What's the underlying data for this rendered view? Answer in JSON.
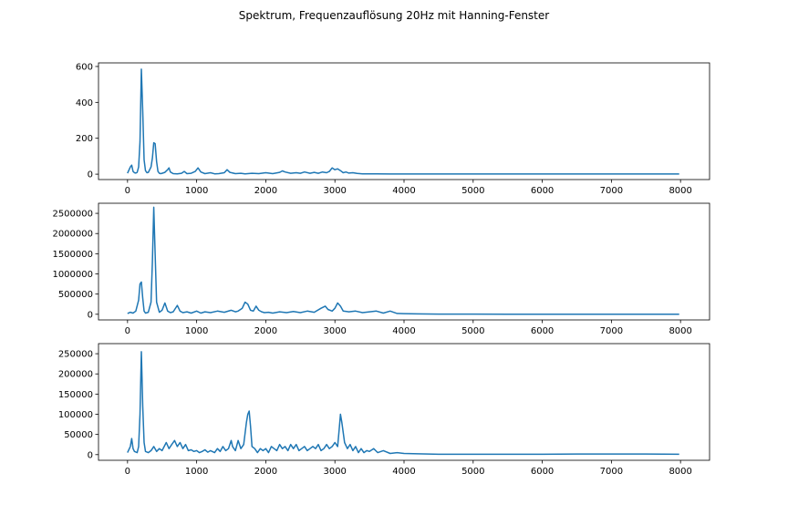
{
  "figure": {
    "title": "Spektrum, Frequenzauflösung 20Hz mit Hanning-Fenster"
  },
  "chart_data": [
    {
      "type": "line",
      "title": "",
      "xlabel": "",
      "ylabel": "",
      "xlim": [
        -420,
        8420
      ],
      "ylim": [
        -30,
        620
      ],
      "xticks": [
        0,
        1000,
        2000,
        3000,
        4000,
        5000,
        6000,
        7000,
        8000
      ],
      "yticks": [
        0,
        200,
        400,
        600
      ],
      "ytick_labels": [
        "0",
        "200",
        "400",
        "600"
      ],
      "grid": false,
      "color": "#1f77b4",
      "series": [
        {
          "x": [
            0,
            40,
            60,
            80,
            100,
            120,
            140,
            160,
            180,
            200,
            220,
            240,
            260,
            280,
            300,
            320,
            340,
            360,
            380,
            400,
            420,
            440,
            460,
            480,
            500,
            540,
            580,
            600,
            620,
            660,
            720,
            780,
            820,
            860,
            920,
            980,
            1020,
            1060,
            1120,
            1200,
            1260,
            1320,
            1400,
            1440,
            1480,
            1560,
            1640,
            1700,
            1800,
            1900,
            2000,
            2100,
            2200,
            2240,
            2280,
            2360,
            2440,
            2500,
            2560,
            2640,
            2700,
            2760,
            2820,
            2880,
            2920,
            2960,
            3000,
            3040,
            3080,
            3120,
            3160,
            3200,
            3260,
            3320,
            3400,
            3500,
            3600,
            3800,
            4000,
            4500,
            5000,
            5500,
            6000,
            6500,
            7000,
            7500,
            7980
          ],
          "y": [
            5,
            40,
            50,
            15,
            8,
            6,
            10,
            40,
            180,
            585,
            350,
            80,
            20,
            8,
            10,
            25,
            40,
            90,
            175,
            170,
            70,
            15,
            5,
            3,
            5,
            10,
            25,
            35,
            12,
            3,
            2,
            5,
            15,
            3,
            5,
            15,
            35,
            12,
            3,
            8,
            2,
            3,
            8,
            25,
            10,
            3,
            5,
            2,
            5,
            3,
            8,
            3,
            10,
            18,
            12,
            5,
            8,
            5,
            12,
            5,
            10,
            5,
            12,
            8,
            15,
            35,
            25,
            30,
            20,
            8,
            12,
            6,
            8,
            4,
            2,
            2,
            2,
            1,
            1,
            1,
            1,
            1,
            1,
            1,
            1,
            1,
            1
          ]
        }
      ]
    },
    {
      "type": "line",
      "title": "",
      "xlabel": "",
      "ylabel": "",
      "xlim": [
        -420,
        8420
      ],
      "ylim": [
        -140000,
        2750000
      ],
      "xticks": [
        0,
        1000,
        2000,
        3000,
        4000,
        5000,
        6000,
        7000,
        8000
      ],
      "yticks": [
        0,
        500000,
        1000000,
        1500000,
        2000000,
        2500000
      ],
      "ytick_labels": [
        "0",
        "500000",
        "1000000",
        "1500000",
        "2000000",
        "2500000"
      ],
      "grid": false,
      "color": "#1f77b4",
      "series": [
        {
          "x": [
            0,
            40,
            80,
            120,
            160,
            180,
            200,
            220,
            240,
            260,
            300,
            340,
            360,
            380,
            400,
            420,
            460,
            500,
            540,
            580,
            620,
            660,
            720,
            760,
            800,
            860,
            920,
            1000,
            1060,
            1120,
            1200,
            1300,
            1400,
            1500,
            1560,
            1600,
            1660,
            1700,
            1740,
            1780,
            1820,
            1860,
            1900,
            1940,
            1980,
            2040,
            2100,
            2200,
            2300,
            2400,
            2500,
            2600,
            2700,
            2800,
            2860,
            2900,
            2960,
            3000,
            3040,
            3080,
            3120,
            3200,
            3300,
            3400,
            3500,
            3600,
            3700,
            3800,
            3900,
            4000,
            4200,
            4500,
            5000,
            5500,
            6000,
            6500,
            7000,
            7500,
            7980
          ],
          "y": [
            20000,
            50000,
            30000,
            80000,
            350000,
            750000,
            800000,
            400000,
            80000,
            30000,
            50000,
            300000,
            1300000,
            2650000,
            1500000,
            300000,
            50000,
            100000,
            280000,
            80000,
            40000,
            60000,
            220000,
            80000,
            40000,
            60000,
            30000,
            80000,
            30000,
            60000,
            40000,
            80000,
            50000,
            100000,
            60000,
            80000,
            150000,
            300000,
            250000,
            100000,
            80000,
            200000,
            100000,
            60000,
            40000,
            50000,
            30000,
            60000,
            40000,
            70000,
            40000,
            80000,
            50000,
            150000,
            200000,
            120000,
            80000,
            150000,
            280000,
            200000,
            80000,
            60000,
            80000,
            40000,
            60000,
            80000,
            30000,
            80000,
            20000,
            15000,
            10000,
            5000,
            5000,
            3000,
            2000,
            2000,
            2000,
            2000,
            2000
          ]
        }
      ]
    },
    {
      "type": "line",
      "title": "",
      "xlabel": "",
      "ylabel": "",
      "xlim": [
        -420,
        8420
      ],
      "ylim": [
        -14000,
        275000
      ],
      "xticks": [
        0,
        1000,
        2000,
        3000,
        4000,
        5000,
        6000,
        7000,
        8000
      ],
      "yticks": [
        0,
        50000,
        100000,
        150000,
        200000,
        250000
      ],
      "ytick_labels": [
        "0",
        "50000",
        "100000",
        "150000",
        "200000",
        "250000"
      ],
      "grid": false,
      "color": "#1f77b4",
      "series": [
        {
          "x": [
            0,
            40,
            60,
            80,
            100,
            140,
            160,
            180,
            200,
            220,
            240,
            260,
            300,
            340,
            380,
            420,
            460,
            500,
            560,
            600,
            640,
            680,
            720,
            760,
            800,
            840,
            880,
            920,
            960,
            1000,
            1040,
            1080,
            1120,
            1160,
            1200,
            1260,
            1300,
            1340,
            1380,
            1420,
            1460,
            1500,
            1520,
            1560,
            1600,
            1640,
            1680,
            1720,
            1740,
            1760,
            1780,
            1800,
            1840,
            1880,
            1920,
            1960,
            2000,
            2040,
            2080,
            2120,
            2160,
            2200,
            2240,
            2280,
            2320,
            2360,
            2400,
            2440,
            2480,
            2520,
            2560,
            2600,
            2640,
            2680,
            2720,
            2760,
            2800,
            2840,
            2880,
            2920,
            2960,
            3000,
            3040,
            3060,
            3080,
            3100,
            3140,
            3180,
            3220,
            3260,
            3300,
            3340,
            3380,
            3420,
            3460,
            3500,
            3560,
            3620,
            3700,
            3800,
            3900,
            4000,
            4200,
            4500,
            5000,
            5500,
            6000,
            6500,
            7000,
            7500,
            7980
          ],
          "y": [
            5000,
            20000,
            40000,
            15000,
            8000,
            5000,
            20000,
            100000,
            255000,
            120000,
            30000,
            8000,
            5000,
            10000,
            20000,
            8000,
            15000,
            10000,
            30000,
            15000,
            25000,
            35000,
            20000,
            30000,
            15000,
            25000,
            10000,
            12000,
            8000,
            10000,
            5000,
            8000,
            12000,
            6000,
            10000,
            5000,
            15000,
            8000,
            20000,
            10000,
            15000,
            35000,
            20000,
            10000,
            35000,
            15000,
            25000,
            80000,
            100000,
            108000,
            70000,
            20000,
            15000,
            5000,
            15000,
            10000,
            15000,
            5000,
            20000,
            15000,
            10000,
            25000,
            15000,
            20000,
            10000,
            25000,
            15000,
            25000,
            10000,
            15000,
            20000,
            10000,
            15000,
            20000,
            15000,
            25000,
            10000,
            15000,
            25000,
            15000,
            20000,
            30000,
            20000,
            60000,
            100000,
            80000,
            30000,
            15000,
            25000,
            10000,
            20000,
            5000,
            15000,
            5000,
            10000,
            8000,
            15000,
            5000,
            10000,
            3000,
            5000,
            3000,
            2000,
            1000,
            1000,
            1000,
            1000,
            1500,
            1500,
            1500,
            1000
          ]
        }
      ]
    }
  ]
}
